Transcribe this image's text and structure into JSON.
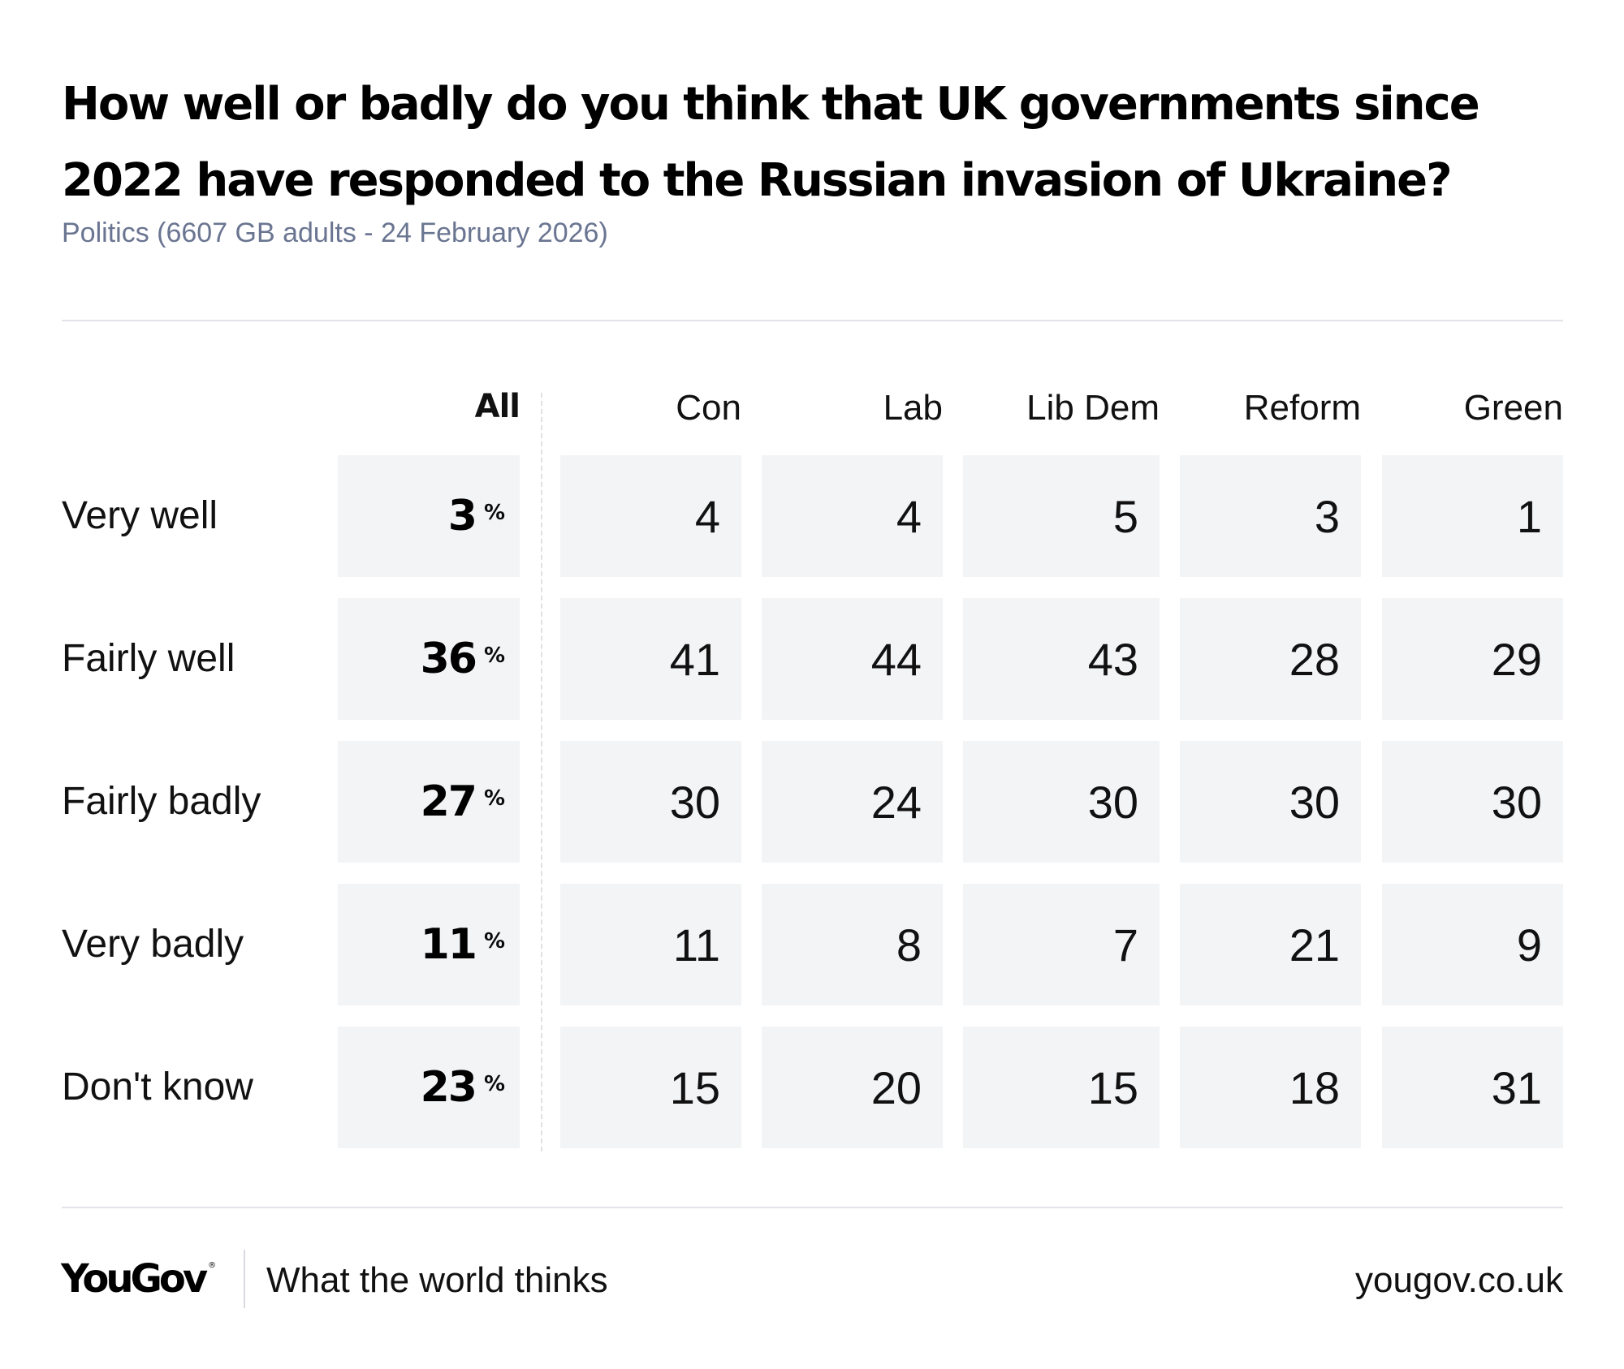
{
  "header": {
    "title": "How well or badly do you think that UK governments since 2022 have responded to the Russian invasion of Ukraine?",
    "subtitle": "Politics (6607 GB adults - 24 February 2026)"
  },
  "chart_data": {
    "type": "table",
    "title": "How well or badly do you think that UK governments since 2022 have responded to the Russian invasion of Ukraine?",
    "subtitle": "Politics (6607 GB adults - 24 February 2026)",
    "columns": [
      "All",
      "Con",
      "Lab",
      "Lib Dem",
      "Reform",
      "Green"
    ],
    "rows": [
      "Very well",
      "Fairly well",
      "Fairly badly",
      "Very badly",
      "Don't know"
    ],
    "unit": "%",
    "series": [
      {
        "name": "All",
        "values": [
          3,
          36,
          27,
          11,
          23
        ]
      },
      {
        "name": "Con",
        "values": [
          4,
          41,
          30,
          11,
          15
        ]
      },
      {
        "name": "Lab",
        "values": [
          4,
          44,
          24,
          8,
          20
        ]
      },
      {
        "name": "Lib Dem",
        "values": [
          5,
          43,
          30,
          7,
          15
        ]
      },
      {
        "name": "Reform",
        "values": [
          3,
          28,
          30,
          21,
          18
        ]
      },
      {
        "name": "Green",
        "values": [
          1,
          29,
          30,
          9,
          31
        ]
      }
    ]
  },
  "footer": {
    "logo": "YouGov",
    "logo_mark": "®",
    "tagline": "What the world thinks",
    "url": "yougov.co.uk"
  },
  "colors": {
    "cell_background": "#f3f4f6",
    "subtitle": "#6a7591",
    "divider": "#e3e4ea"
  }
}
